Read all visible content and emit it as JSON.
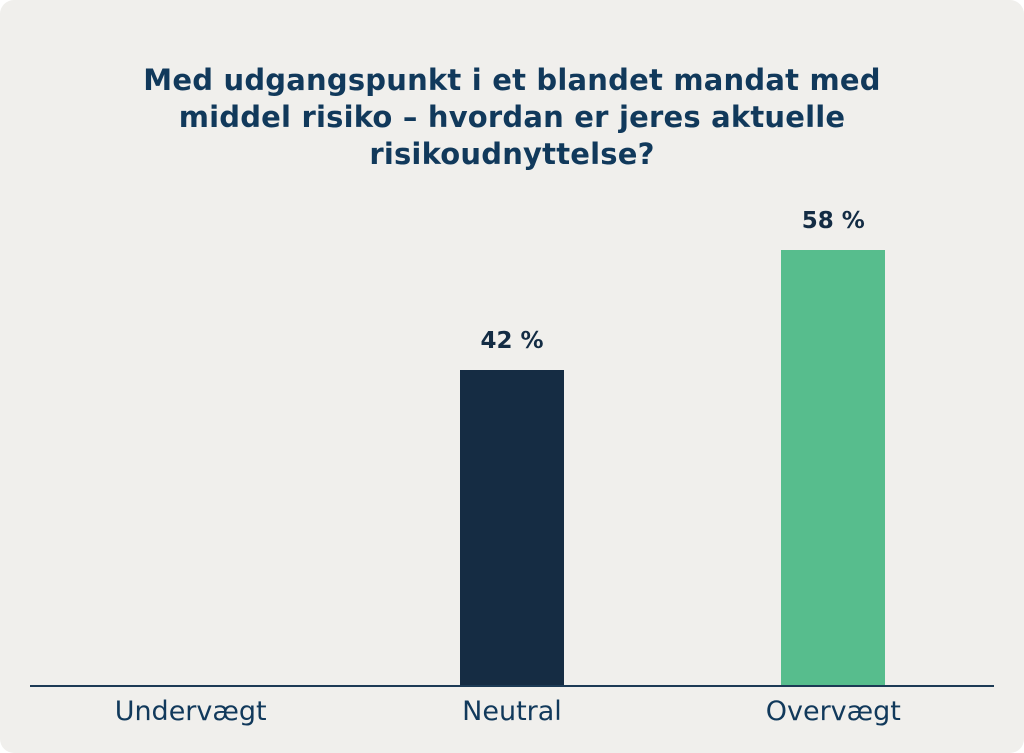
{
  "chart_data": {
    "type": "bar",
    "title": "Med udgangspunkt i et blandet mandat med middel risiko – hvordan er jeres aktuelle risikoudnyttelse?",
    "categories": [
      "Undervægt",
      "Neutral",
      "Overvægt"
    ],
    "values": [
      0,
      42,
      58
    ],
    "value_labels": [
      "",
      "42 %",
      "58 %"
    ],
    "bar_colors": [
      "#152c43",
      "#152c43",
      "#57bd8d"
    ],
    "xlabel": "",
    "ylabel": "",
    "ylim": [
      0,
      65
    ],
    "grid": false,
    "legend": "none"
  },
  "colors": {
    "background": "#f0efec",
    "title_text": "#11395b",
    "value_label_text": "#132c44",
    "category_label_text": "#11395b",
    "axis_line": "#1c3a55",
    "bar_neutral": "#152c43",
    "bar_overweight": "#57bd8d"
  }
}
